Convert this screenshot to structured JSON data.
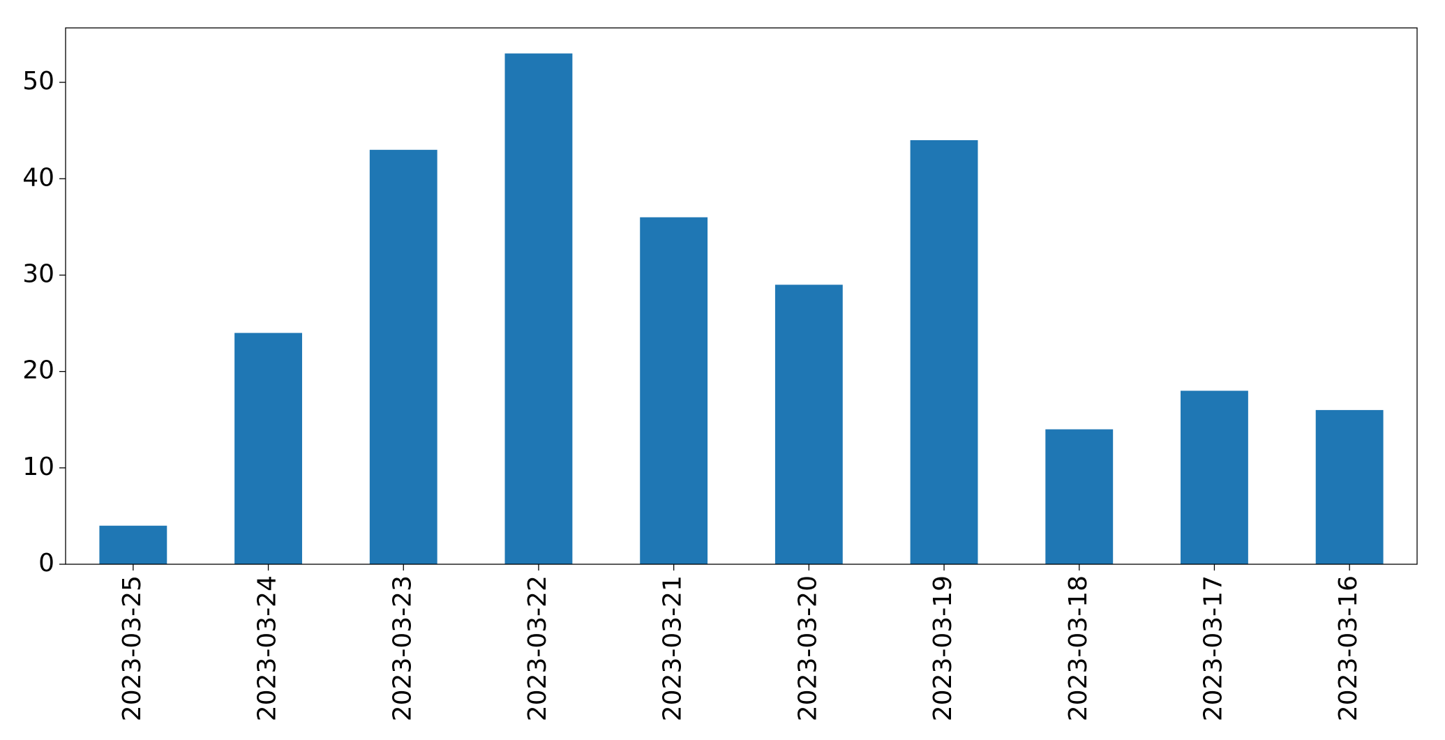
{
  "chart_data": {
    "type": "bar",
    "categories": [
      "2023-03-25",
      "2023-03-24",
      "2023-03-23",
      "2023-03-22",
      "2023-03-21",
      "2023-03-20",
      "2023-03-19",
      "2023-03-18",
      "2023-03-17",
      "2023-03-16"
    ],
    "values": [
      4,
      24,
      43,
      53,
      36,
      29,
      44,
      14,
      18,
      16
    ],
    "color": "#1f77b4",
    "ylim": [
      0,
      55.65
    ],
    "yticks": [
      0,
      10,
      20,
      30,
      40,
      50
    ],
    "grid": false
  }
}
